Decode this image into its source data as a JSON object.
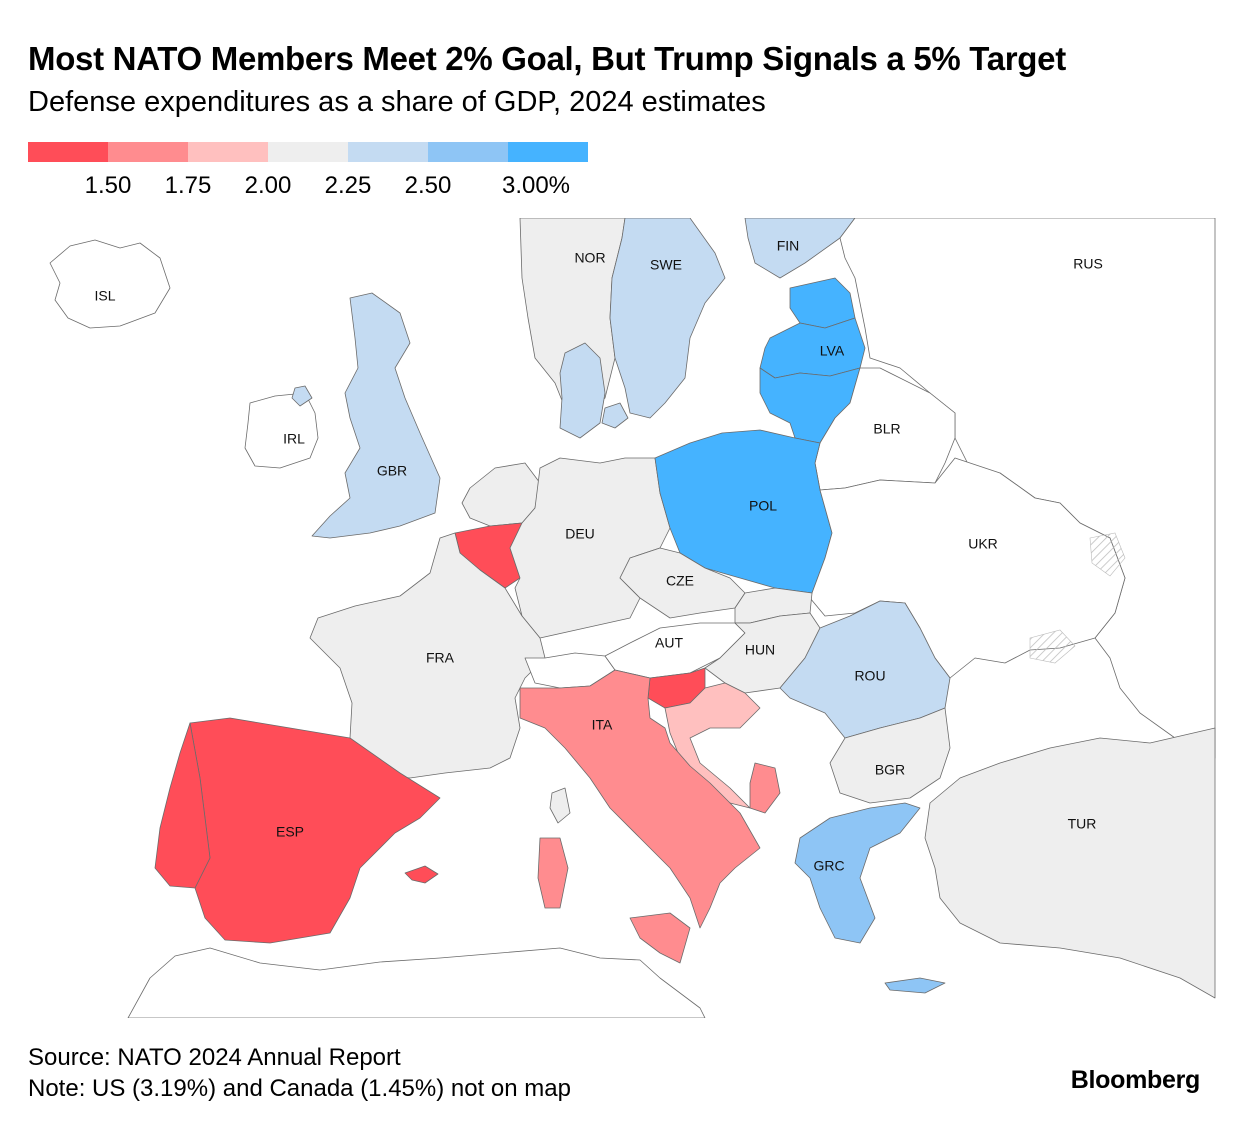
{
  "header": {
    "title": "Most NATO Members Meet 2% Goal, But Trump Signals a 5% Target",
    "subtitle": "Defense expenditures as a share of GDP, 2024 estimates"
  },
  "legend": {
    "colors": [
      "#ff4d58",
      "#ff8c8f",
      "#ffc0bf",
      "#eeeeee",
      "#c4dbf2",
      "#8ec5f5",
      "#45b3ff"
    ],
    "ticks": [
      "1.50",
      "1.75",
      "2.00",
      "2.25",
      "2.50",
      "3.00%"
    ]
  },
  "map": {
    "no_data_color": "#ffffff",
    "hatch_note": "disputed territory",
    "countries": [
      {
        "code": "ISL",
        "label": "ISL",
        "category": "none"
      },
      {
        "code": "NOR",
        "label": "NOR",
        "category": "2.00-2.25"
      },
      {
        "code": "SWE",
        "label": "SWE",
        "category": "2.25-2.50"
      },
      {
        "code": "FIN",
        "label": "FIN",
        "category": "2.25-2.50"
      },
      {
        "code": "RUS",
        "label": "RUS",
        "category": "none"
      },
      {
        "code": "EST",
        "label": "",
        "category": ">3.00"
      },
      {
        "code": "LVA",
        "label": "LVA",
        "category": ">3.00"
      },
      {
        "code": "LTU",
        "label": "",
        "category": ">3.00"
      },
      {
        "code": "IRL",
        "label": "IRL",
        "category": "none"
      },
      {
        "code": "GBR",
        "label": "GBR",
        "category": "2.25-2.50"
      },
      {
        "code": "DNK",
        "label": "",
        "category": "2.25-2.50"
      },
      {
        "code": "BLR",
        "label": "BLR",
        "category": "none"
      },
      {
        "code": "NLD",
        "label": "",
        "category": "2.00-2.25"
      },
      {
        "code": "BEL",
        "label": "",
        "category": "<1.50"
      },
      {
        "code": "DEU",
        "label": "DEU",
        "category": "2.00-2.25"
      },
      {
        "code": "POL",
        "label": "POL",
        "category": ">3.00"
      },
      {
        "code": "UKR",
        "label": "UKR",
        "category": "none"
      },
      {
        "code": "CZE",
        "label": "CZE",
        "category": "2.00-2.25"
      },
      {
        "code": "SVK",
        "label": "",
        "category": "2.00-2.25"
      },
      {
        "code": "FRA",
        "label": "FRA",
        "category": "2.00-2.25"
      },
      {
        "code": "CHE",
        "label": "",
        "category": "none"
      },
      {
        "code": "AUT",
        "label": "AUT",
        "category": "none"
      },
      {
        "code": "HUN",
        "label": "HUN",
        "category": "2.00-2.25"
      },
      {
        "code": "ROU",
        "label": "ROU",
        "category": "2.25-2.50"
      },
      {
        "code": "SVN",
        "label": "",
        "category": "<1.50"
      },
      {
        "code": "HRV",
        "label": "",
        "category": "1.75-2.00"
      },
      {
        "code": "ITA",
        "label": "ITA",
        "category": "1.50-1.75"
      },
      {
        "code": "ESP",
        "label": "ESP",
        "category": "<1.50"
      },
      {
        "code": "PRT",
        "label": "",
        "category": "<1.50"
      },
      {
        "code": "MNE",
        "label": "",
        "category": "1.50-1.75"
      },
      {
        "code": "BGR",
        "label": "BGR",
        "category": "2.00-2.25"
      },
      {
        "code": "GRC",
        "label": "GRC",
        "category": "2.50-3.00"
      },
      {
        "code": "TUR",
        "label": "TUR",
        "category": "2.00-2.25"
      }
    ]
  },
  "footer": {
    "source": "Source: NATO 2024 Annual Report",
    "note": "Note: US (3.19%) and Canada (1.45%) not on map"
  },
  "brand": "Bloomberg"
}
